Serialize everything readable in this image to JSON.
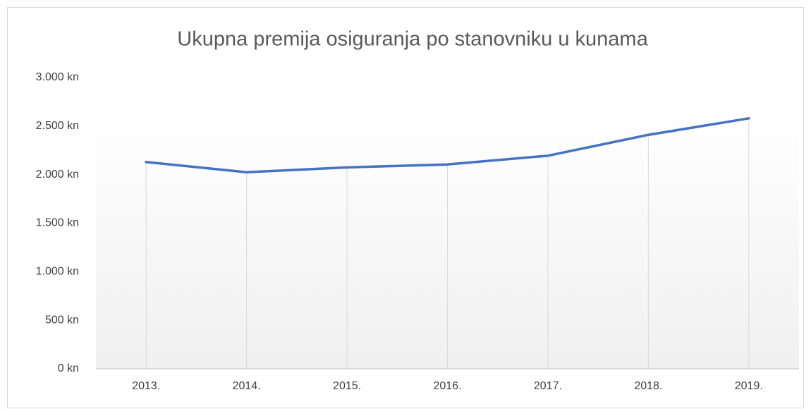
{
  "chart_data": {
    "type": "line",
    "title": "Ukupna premija osiguranja po stanovniku u kunama",
    "categories": [
      "2013.",
      "2014.",
      "2015.",
      "2016.",
      "2017.",
      "2018.",
      "2019."
    ],
    "series": [
      {
        "name": "Ukupna premija osiguranja po stanovniku",
        "color": "#4472c4",
        "values": [
          2130,
          2025,
          2075,
          2105,
          2195,
          2410,
          2580
        ]
      }
    ],
    "ylim": [
      0,
      3000
    ],
    "yticks": [
      {
        "value": 0,
        "label": "0 kn"
      },
      {
        "value": 500,
        "label": "500 kn"
      },
      {
        "value": 1000,
        "label": "1.000 kn"
      },
      {
        "value": 1500,
        "label": "1.500 kn"
      },
      {
        "value": 2000,
        "label": "2.000 kn"
      },
      {
        "value": 2500,
        "label": "2.500 kn"
      },
      {
        "value": 3000,
        "label": "3.000 kn"
      }
    ]
  }
}
